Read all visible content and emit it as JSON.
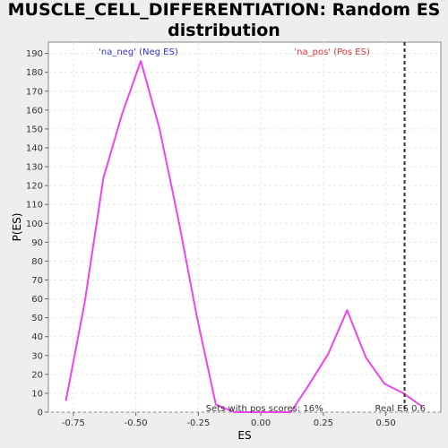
{
  "chart_data": {
    "type": "line",
    "title_lines": [
      "MUSCLE_CELL_DIFFERENTIATION: Random ES",
      "distribution"
    ],
    "xlabel": "ES",
    "ylabel": "P(ES)",
    "xlim": [
      -0.85,
      0.72
    ],
    "ylim": [
      0,
      196
    ],
    "x_ticks": [
      -0.75,
      -0.5,
      -0.25,
      0.0,
      0.25,
      0.5
    ],
    "x_tick_labels": [
      "-0.75",
      "-0.50",
      "-0.25",
      "0.00",
      "0.25",
      "0.50"
    ],
    "y_ticks": [
      0,
      10,
      20,
      30,
      40,
      50,
      60,
      70,
      80,
      90,
      100,
      110,
      120,
      130,
      140,
      150,
      160,
      170,
      180,
      190
    ],
    "y_tick_labels": [
      "0",
      "10",
      "20",
      "30",
      "40",
      "50",
      "60",
      "70",
      "80",
      "90",
      "100",
      "110",
      "120",
      "130",
      "140",
      "150",
      "160",
      "170",
      "180",
      "190"
    ],
    "grid": true,
    "series": [
      {
        "color": "#ee44ee",
        "x": [
          -0.78,
          -0.705,
          -0.63,
          -0.555,
          -0.48,
          -0.405,
          -0.33,
          -0.255,
          -0.18,
          -0.105,
          -0.03,
          0.045,
          0.12,
          0.195,
          0.27,
          0.345,
          0.42,
          0.495,
          0.57,
          0.645
        ],
        "y": [
          6,
          58,
          124,
          158,
          186,
          150,
          102,
          50,
          4,
          0,
          0,
          0,
          0,
          15,
          31,
          54,
          29,
          15,
          10,
          3
        ]
      }
    ],
    "vline": {
      "x": 0.575,
      "label": "Real ES 0.6",
      "color": "#333333"
    },
    "annotations": {
      "neg_label": "'na_neg' (Neg ES)",
      "pos_label": "'na_pos' (Pos ES)",
      "pos_scores": "Sets with pos scores: 16%"
    },
    "colors": {
      "neg": "#3333cc",
      "pos": "#dd3333",
      "plot_bg": "#ffffff",
      "page_bg": "#eeeeee",
      "grid": "#e6e6e6"
    }
  }
}
